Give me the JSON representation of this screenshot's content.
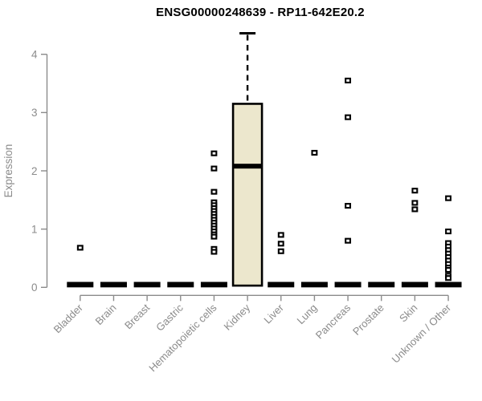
{
  "chart_data": {
    "type": "boxplot",
    "title": "ENSG00000248639 - RP11-642E20.2",
    "ylabel": "Expression",
    "xlabel": "",
    "ylim": [
      0,
      4.45
    ],
    "yticks": [
      0,
      1,
      2,
      3,
      4
    ],
    "grid": false,
    "legend": "none",
    "categories": [
      "Bladder",
      "Brain",
      "Breast",
      "Gastric",
      "Hematopoietic cells",
      "Kidney",
      "Liver",
      "Lung",
      "Pancreas",
      "Prostate",
      "Skin",
      "Unknown / Other"
    ],
    "boxes": [
      {
        "category": "Bladder",
        "q1": 0,
        "median": 0,
        "q3": 0,
        "whisker_low": 0,
        "whisker_high": 0,
        "outliers": [
          0.68
        ]
      },
      {
        "category": "Brain",
        "q1": 0,
        "median": 0,
        "q3": 0,
        "whisker_low": 0,
        "whisker_high": 0,
        "outliers": []
      },
      {
        "category": "Breast",
        "q1": 0,
        "median": 0,
        "q3": 0,
        "whisker_low": 0,
        "whisker_high": 0,
        "outliers": []
      },
      {
        "category": "Gastric",
        "q1": 0,
        "median": 0,
        "q3": 0,
        "whisker_low": 0,
        "whisker_high": 0,
        "outliers": []
      },
      {
        "category": "Hematopoietic cells",
        "q1": 0,
        "median": 0,
        "q3": 0,
        "whisker_low": 0,
        "whisker_high": 0,
        "outliers": [
          2.3,
          2.04,
          1.64,
          1.46,
          1.41,
          1.36,
          1.31,
          1.26,
          1.21,
          1.16,
          1.11,
          1.06,
          1.01,
          0.96,
          0.91,
          0.87,
          0.66,
          0.61
        ]
      },
      {
        "category": "Kidney",
        "q1": 0.03,
        "median": 2.08,
        "q3": 3.15,
        "whisker_low": 0.03,
        "whisker_high": 4.36,
        "outliers": []
      },
      {
        "category": "Liver",
        "q1": 0,
        "median": 0,
        "q3": 0,
        "whisker_low": 0,
        "whisker_high": 0,
        "outliers": [
          0.9,
          0.75,
          0.62
        ]
      },
      {
        "category": "Lung",
        "q1": 0,
        "median": 0,
        "q3": 0,
        "whisker_low": 0,
        "whisker_high": 0,
        "outliers": [
          2.31
        ]
      },
      {
        "category": "Pancreas",
        "q1": 0,
        "median": 0,
        "q3": 0,
        "whisker_low": 0,
        "whisker_high": 0,
        "outliers": [
          3.55,
          2.92,
          1.4,
          0.8
        ]
      },
      {
        "category": "Prostate",
        "q1": 0,
        "median": 0,
        "q3": 0,
        "whisker_low": 0,
        "whisker_high": 0,
        "outliers": []
      },
      {
        "category": "Skin",
        "q1": 0,
        "median": 0,
        "q3": 0,
        "whisker_low": 0,
        "whisker_high": 0,
        "outliers": [
          1.66,
          1.45,
          1.34
        ]
      },
      {
        "category": "Unknown / Other",
        "q1": 0,
        "median": 0,
        "q3": 0,
        "whisker_low": 0,
        "whisker_high": 0,
        "outliers": [
          1.53,
          0.96,
          0.76,
          0.7,
          0.64,
          0.58,
          0.52,
          0.46,
          0.4,
          0.34,
          0.3,
          0.2,
          0.16
        ]
      }
    ],
    "colors": {
      "background": "#ffffff",
      "box_fill": "#ECE7CD",
      "box_stroke": "#000000",
      "median": "#000000",
      "outlier_stroke": "#000000",
      "outlier_fill": "#ffffff",
      "axis": "#8B8B8B",
      "title": "#000000"
    }
  }
}
